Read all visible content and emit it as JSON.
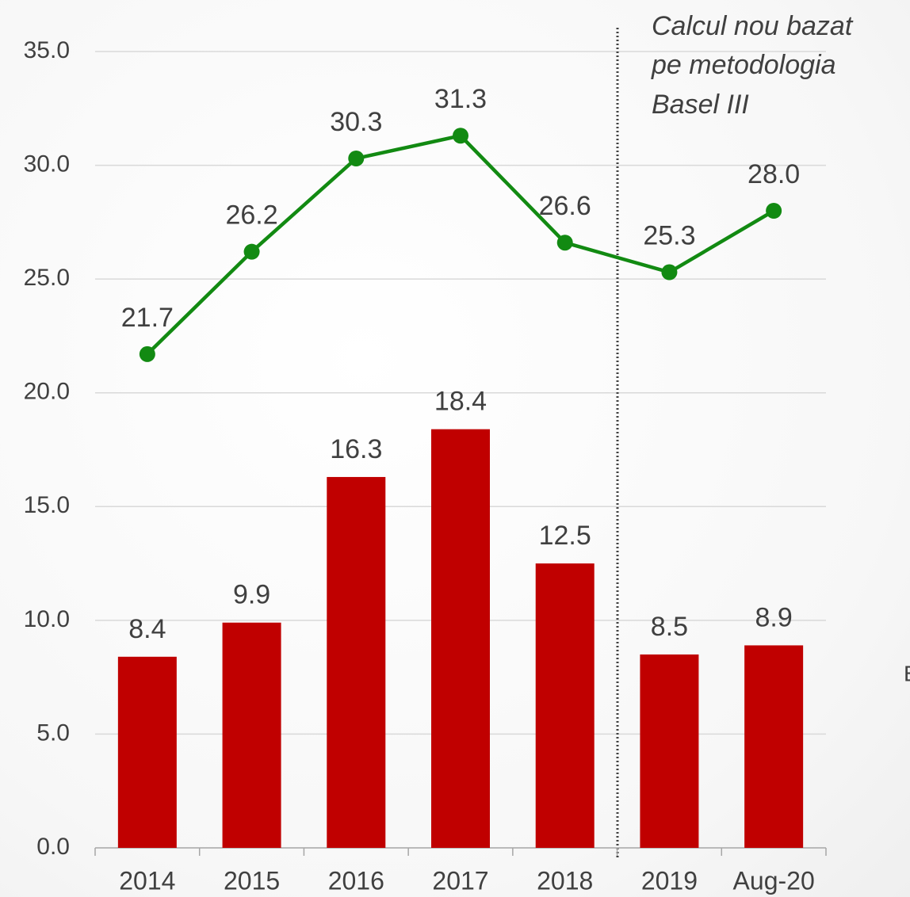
{
  "chart_data": {
    "type": "combo",
    "categories": [
      "2014",
      "2015",
      "2016",
      "2017",
      "2018",
      "2019",
      "Aug-20"
    ],
    "series": [
      {
        "type": "bar",
        "color": "#c00000",
        "values": [
          8.4,
          9.9,
          16.3,
          18.4,
          12.5,
          8.5,
          8.9
        ]
      },
      {
        "type": "line",
        "color": "#128a12",
        "values": [
          21.7,
          26.2,
          30.3,
          31.3,
          26.6,
          25.3,
          28
        ],
        "value_labels": [
          "21.7",
          "26.2",
          "30.3",
          "31.3",
          "26.6",
          "25.3",
          "28.0"
        ]
      }
    ],
    "ylim": [
      0,
      35
    ],
    "yticks": [
      {
        "value": 0,
        "label": "0.0"
      },
      {
        "value": 5,
        "label": "5.0"
      },
      {
        "value": 10,
        "label": "10.0"
      },
      {
        "value": 15,
        "label": "15.0"
      },
      {
        "value": 20,
        "label": "20.0"
      },
      {
        "value": 25,
        "label": "25.0"
      },
      {
        "value": 30,
        "label": "30.0"
      },
      {
        "value": 35,
        "label": "35.0"
      }
    ],
    "grid": true,
    "annotation": [
      "Calcul nou bazat",
      "pe metodologia",
      "Basel III"
    ],
    "edge_text": "E"
  }
}
